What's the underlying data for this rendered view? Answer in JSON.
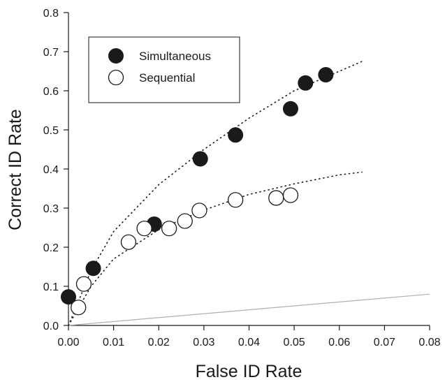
{
  "chart_data": {
    "type": "scatter",
    "xlabel": "False ID Rate",
    "ylabel": "Correct ID Rate",
    "xlim": [
      0.0,
      0.08
    ],
    "ylim": [
      0.0,
      0.8
    ],
    "xticks": [
      "0.00",
      "0.01",
      "0.02",
      "0.03",
      "0.04",
      "0.05",
      "0.06",
      "0.07",
      "0.08"
    ],
    "yticks": [
      "0.0",
      "0.1",
      "0.2",
      "0.3",
      "0.4",
      "0.5",
      "0.6",
      "0.7",
      "0.8"
    ],
    "grid": false,
    "legend_position": "top-left",
    "series": [
      {
        "name": "Simultaneous",
        "marker": "filled-circle",
        "color": "#1a1a1a",
        "points": [
          {
            "x": 0.0,
            "y": 0.073
          },
          {
            "x": 0.0055,
            "y": 0.146
          },
          {
            "x": 0.019,
            "y": 0.259
          },
          {
            "x": 0.0292,
            "y": 0.426
          },
          {
            "x": 0.037,
            "y": 0.487
          },
          {
            "x": 0.0492,
            "y": 0.554
          },
          {
            "x": 0.0525,
            "y": 0.62
          },
          {
            "x": 0.057,
            "y": 0.641
          }
        ]
      },
      {
        "name": "Sequential",
        "marker": "open-circle",
        "color": "#1a1a1a",
        "points": [
          {
            "x": 0.0022,
            "y": 0.046
          },
          {
            "x": 0.0034,
            "y": 0.106
          },
          {
            "x": 0.0133,
            "y": 0.213
          },
          {
            "x": 0.0168,
            "y": 0.248
          },
          {
            "x": 0.0223,
            "y": 0.248
          },
          {
            "x": 0.0258,
            "y": 0.267
          },
          {
            "x": 0.029,
            "y": 0.294
          },
          {
            "x": 0.037,
            "y": 0.321
          },
          {
            "x": 0.046,
            "y": 0.326
          },
          {
            "x": 0.0492,
            "y": 0.333
          }
        ]
      }
    ],
    "fit_curves": [
      {
        "for_series": "Simultaneous",
        "style": "dotted",
        "points": [
          [
            0.0,
            0.0
          ],
          [
            0.005,
            0.14
          ],
          [
            0.01,
            0.24
          ],
          [
            0.02,
            0.36
          ],
          [
            0.03,
            0.45
          ],
          [
            0.04,
            0.53
          ],
          [
            0.05,
            0.6
          ],
          [
            0.06,
            0.65
          ],
          [
            0.065,
            0.675
          ]
        ]
      },
      {
        "for_series": "Sequential",
        "style": "dotted",
        "points": [
          [
            0.0,
            0.0
          ],
          [
            0.005,
            0.1
          ],
          [
            0.01,
            0.17
          ],
          [
            0.02,
            0.245
          ],
          [
            0.03,
            0.295
          ],
          [
            0.04,
            0.335
          ],
          [
            0.05,
            0.362
          ],
          [
            0.06,
            0.385
          ],
          [
            0.065,
            0.392
          ]
        ]
      }
    ],
    "reference_line": {
      "style": "solid",
      "color": "#b0b0b0",
      "from": [
        0.0,
        0.0
      ],
      "to": [
        0.08,
        0.08
      ]
    }
  }
}
